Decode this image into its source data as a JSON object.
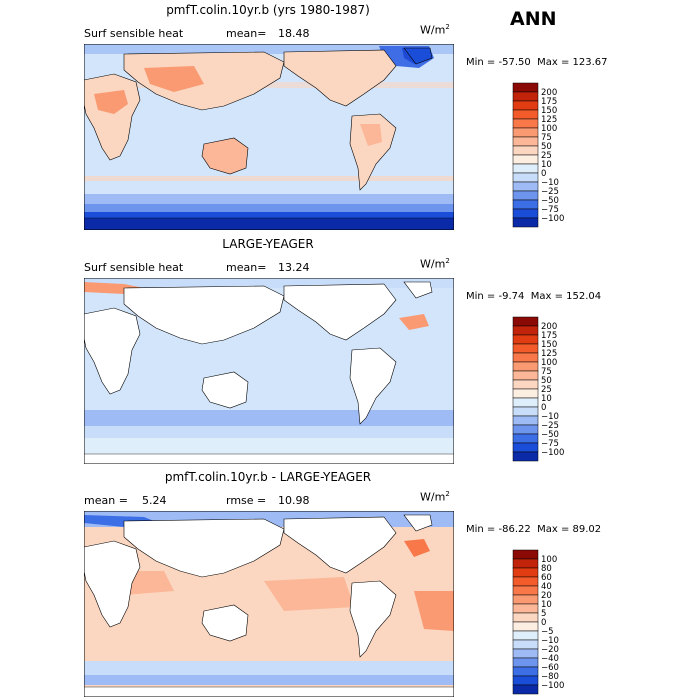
{
  "page": {
    "season": "ANN"
  },
  "chart_data": [
    {
      "type": "heatmap",
      "title": "pmfT.colin.10yr.b (yrs 1980-1987)",
      "left_label": "Surf sensible heat",
      "stat1_label": "mean=",
      "stat1_value": "18.48",
      "stat2_label": "",
      "stat2_value": "",
      "units": "W/m",
      "units_sup": "2",
      "min_label": "Min = ",
      "min_value": "-57.50",
      "max_label": "Max = ",
      "max_value": "123.67",
      "colorbar_levels": [
        "200",
        "175",
        "150",
        "125",
        "100",
        "75",
        "50",
        "25",
        "10",
        "0",
        "−10",
        "−25",
        "−50",
        "−75",
        "−100"
      ],
      "colorbar_colors": [
        "#8b0a05",
        "#c2240b",
        "#e23c12",
        "#f35c2a",
        "#f8784a",
        "#fa9a72",
        "#fbb797",
        "#fbd6c0",
        "#fdeee2",
        "#dfeefb",
        "#c8ddf9",
        "#9ebbf5",
        "#6d95ee",
        "#3c6ee6",
        "#1a4ed8",
        "#0a2aa8"
      ]
    },
    {
      "type": "heatmap",
      "title": "LARGE-YEAGER",
      "left_label": "Surf sensible heat",
      "stat1_label": "mean=",
      "stat1_value": "13.24",
      "stat2_label": "",
      "stat2_value": "",
      "units": "W/m",
      "units_sup": "2",
      "min_label": "Min = ",
      "min_value": "-9.74",
      "max_label": "Max = ",
      "max_value": "152.04",
      "colorbar_levels": [
        "200",
        "175",
        "150",
        "125",
        "100",
        "75",
        "50",
        "25",
        "10",
        "0",
        "−10",
        "−25",
        "−50",
        "−75",
        "−100"
      ],
      "colorbar_colors": [
        "#8b0a05",
        "#c2240b",
        "#e23c12",
        "#f35c2a",
        "#f8784a",
        "#fa9a72",
        "#fbb797",
        "#fbd6c0",
        "#fdeee2",
        "#dfeefb",
        "#c8ddf9",
        "#9ebbf5",
        "#6d95ee",
        "#3c6ee6",
        "#1a4ed8",
        "#0a2aa8"
      ]
    },
    {
      "type": "heatmap",
      "title": "pmfT.colin.10yr.b - LARGE-YEAGER",
      "left_label": "",
      "stat1_label": "mean =",
      "stat1_value": "5.24",
      "stat2_label": "rmse =",
      "stat2_value": "10.98",
      "units": "W/m",
      "units_sup": "2",
      "min_label": "Min = ",
      "min_value": "-86.22",
      "max_label": "Max = ",
      "max_value": "89.02",
      "colorbar_levels": [
        "100",
        "80",
        "60",
        "40",
        "20",
        "10",
        "5",
        "0",
        "−5",
        "−10",
        "−20",
        "−40",
        "−60",
        "−80",
        "−100"
      ],
      "colorbar_colors": [
        "#8b0a05",
        "#c2240b",
        "#e23c12",
        "#f35c2a",
        "#f8784a",
        "#fa9a72",
        "#fbb797",
        "#fbd6c0",
        "#fdeee2",
        "#dfeefb",
        "#c8ddf9",
        "#9ebbf5",
        "#6d95ee",
        "#3c6ee6",
        "#1a4ed8",
        "#0a2aa8"
      ]
    }
  ]
}
